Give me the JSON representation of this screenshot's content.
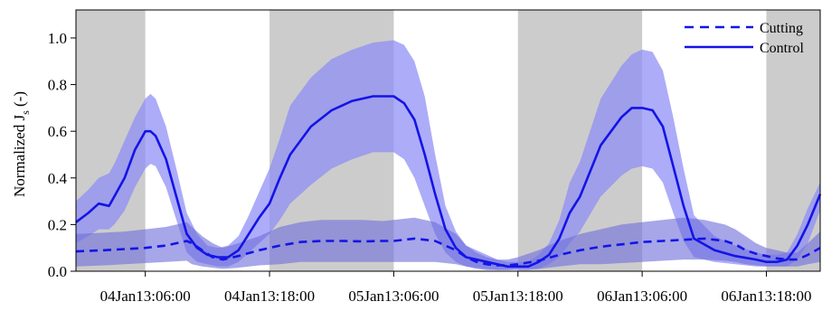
{
  "chart_data": {
    "type": "line",
    "title": "",
    "xlabel": "",
    "ylabel_main": "Normalized J",
    "ylabel_sub": "s",
    "ylabel_tail": " (-)",
    "xlim_hours": [
      -6.7,
      65.2
    ],
    "ylim": [
      0,
      1.12
    ],
    "y_ticks": [
      0.0,
      0.2,
      0.4,
      0.6,
      0.8,
      1.0
    ],
    "y_tick_labels": [
      "0.0",
      "0.2",
      "0.4",
      "0.6",
      "0.8",
      "1.0"
    ],
    "x_ticks_hours": [
      0,
      12,
      24,
      36,
      48,
      60
    ],
    "x_tick_labels": [
      "04Jan13:06:00",
      "04Jan13:18:00",
      "05Jan13:06:00",
      "05Jan13:18:00",
      "06Jan13:06:00",
      "06Jan13:18:00"
    ],
    "grid": false,
    "legend_position": "top-right",
    "night_shading_hours": [
      [
        -6.7,
        0
      ],
      [
        12,
        24
      ],
      [
        36,
        48
      ],
      [
        60,
        65.2
      ]
    ],
    "colors": {
      "line": "#1414e6",
      "band_control": "#8c8cf5",
      "band_cutting": "#7070dc",
      "night": "#cccccc"
    },
    "series": [
      {
        "name": "Cutting",
        "style": "dashed",
        "x": [
          -6.7,
          -4,
          -2,
          0,
          2,
          4,
          4.5,
          5.5,
          6.5,
          7.5,
          9,
          11,
          13,
          15,
          17,
          19,
          21,
          23,
          24,
          26,
          28,
          30,
          31,
          32,
          33,
          34,
          35,
          36,
          38,
          40,
          42,
          44,
          46,
          48,
          50,
          52,
          54,
          56,
          57,
          58,
          59,
          60,
          61,
          62,
          63,
          64,
          65.2
        ],
        "y": [
          0.085,
          0.09,
          0.095,
          0.1,
          0.11,
          0.13,
          0.12,
          0.09,
          0.06,
          0.05,
          0.065,
          0.09,
          0.11,
          0.125,
          0.13,
          0.13,
          0.128,
          0.13,
          0.13,
          0.14,
          0.13,
          0.09,
          0.06,
          0.04,
          0.03,
          0.025,
          0.025,
          0.03,
          0.045,
          0.07,
          0.09,
          0.105,
          0.115,
          0.125,
          0.13,
          0.135,
          0.14,
          0.13,
          0.115,
          0.09,
          0.075,
          0.065,
          0.055,
          0.05,
          0.05,
          0.07,
          0.1
        ],
        "band_lower": [
          0.02,
          0.025,
          0.03,
          0.035,
          0.04,
          0.045,
          0.03,
          0.02,
          0.015,
          0.01,
          0.015,
          0.025,
          0.03,
          0.04,
          0.04,
          0.04,
          0.04,
          0.04,
          0.04,
          0.04,
          0.04,
          0.03,
          0.02,
          0.01,
          0.005,
          0.005,
          0.005,
          0.01,
          0.01,
          0.02,
          0.03,
          0.03,
          0.035,
          0.04,
          0.045,
          0.05,
          0.05,
          0.045,
          0.04,
          0.03,
          0.025,
          0.02,
          0.02,
          0.02,
          0.02,
          0.03,
          0.04
        ],
        "band_upper": [
          0.16,
          0.165,
          0.17,
          0.18,
          0.19,
          0.21,
          0.19,
          0.15,
          0.12,
          0.1,
          0.12,
          0.15,
          0.19,
          0.21,
          0.22,
          0.22,
          0.22,
          0.215,
          0.22,
          0.23,
          0.21,
          0.16,
          0.11,
          0.08,
          0.06,
          0.05,
          0.05,
          0.06,
          0.09,
          0.13,
          0.16,
          0.18,
          0.2,
          0.21,
          0.22,
          0.23,
          0.22,
          0.2,
          0.18,
          0.15,
          0.12,
          0.1,
          0.09,
          0.08,
          0.08,
          0.12,
          0.17
        ]
      },
      {
        "name": "Control",
        "style": "solid",
        "x": [
          -6.7,
          -5.5,
          -4.5,
          -3.5,
          -3,
          -2,
          -1,
          0,
          0.5,
          1,
          2,
          3,
          4,
          5,
          6,
          7,
          8,
          9,
          10,
          11,
          12,
          13,
          14,
          16,
          18,
          20,
          22,
          24,
          25,
          26,
          27,
          28,
          29,
          30,
          31,
          33,
          34,
          35,
          36,
          37,
          38,
          39,
          40,
          41,
          42,
          44,
          46,
          47,
          48,
          49,
          50,
          51,
          52,
          53,
          55,
          57,
          59,
          60,
          61,
          62,
          63,
          64,
          65.2
        ],
        "y": [
          0.21,
          0.25,
          0.29,
          0.28,
          0.32,
          0.4,
          0.52,
          0.6,
          0.6,
          0.58,
          0.48,
          0.32,
          0.16,
          0.1,
          0.07,
          0.06,
          0.06,
          0.09,
          0.16,
          0.23,
          0.29,
          0.4,
          0.5,
          0.62,
          0.69,
          0.73,
          0.75,
          0.75,
          0.72,
          0.65,
          0.5,
          0.33,
          0.18,
          0.1,
          0.06,
          0.04,
          0.03,
          0.02,
          0.02,
          0.02,
          0.04,
          0.07,
          0.14,
          0.25,
          0.32,
          0.54,
          0.66,
          0.7,
          0.7,
          0.69,
          0.62,
          0.45,
          0.28,
          0.14,
          0.09,
          0.065,
          0.05,
          0.04,
          0.04,
          0.05,
          0.11,
          0.2,
          0.33
        ],
        "band_lower": [
          0.12,
          0.15,
          0.18,
          0.18,
          0.2,
          0.26,
          0.36,
          0.44,
          0.46,
          0.45,
          0.36,
          0.22,
          0.08,
          0.04,
          0.03,
          0.02,
          0.02,
          0.04,
          0.08,
          0.12,
          0.16,
          0.22,
          0.29,
          0.37,
          0.44,
          0.48,
          0.51,
          0.51,
          0.48,
          0.4,
          0.28,
          0.16,
          0.08,
          0.04,
          0.02,
          0.01,
          0.005,
          0.005,
          0.005,
          0.005,
          0.01,
          0.03,
          0.06,
          0.12,
          0.17,
          0.32,
          0.41,
          0.44,
          0.45,
          0.44,
          0.38,
          0.25,
          0.13,
          0.06,
          0.04,
          0.03,
          0.02,
          0.02,
          0.02,
          0.02,
          0.05,
          0.12,
          0.26
        ],
        "band_upper": [
          0.3,
          0.35,
          0.4,
          0.42,
          0.46,
          0.56,
          0.66,
          0.74,
          0.76,
          0.74,
          0.62,
          0.44,
          0.25,
          0.16,
          0.11,
          0.1,
          0.11,
          0.15,
          0.24,
          0.34,
          0.44,
          0.57,
          0.71,
          0.83,
          0.91,
          0.95,
          0.98,
          0.99,
          0.97,
          0.9,
          0.75,
          0.5,
          0.28,
          0.17,
          0.11,
          0.07,
          0.05,
          0.04,
          0.04,
          0.04,
          0.07,
          0.12,
          0.22,
          0.38,
          0.47,
          0.74,
          0.88,
          0.93,
          0.95,
          0.94,
          0.86,
          0.66,
          0.44,
          0.24,
          0.15,
          0.11,
          0.08,
          0.07,
          0.07,
          0.08,
          0.16,
          0.27,
          0.38
        ]
      }
    ]
  }
}
